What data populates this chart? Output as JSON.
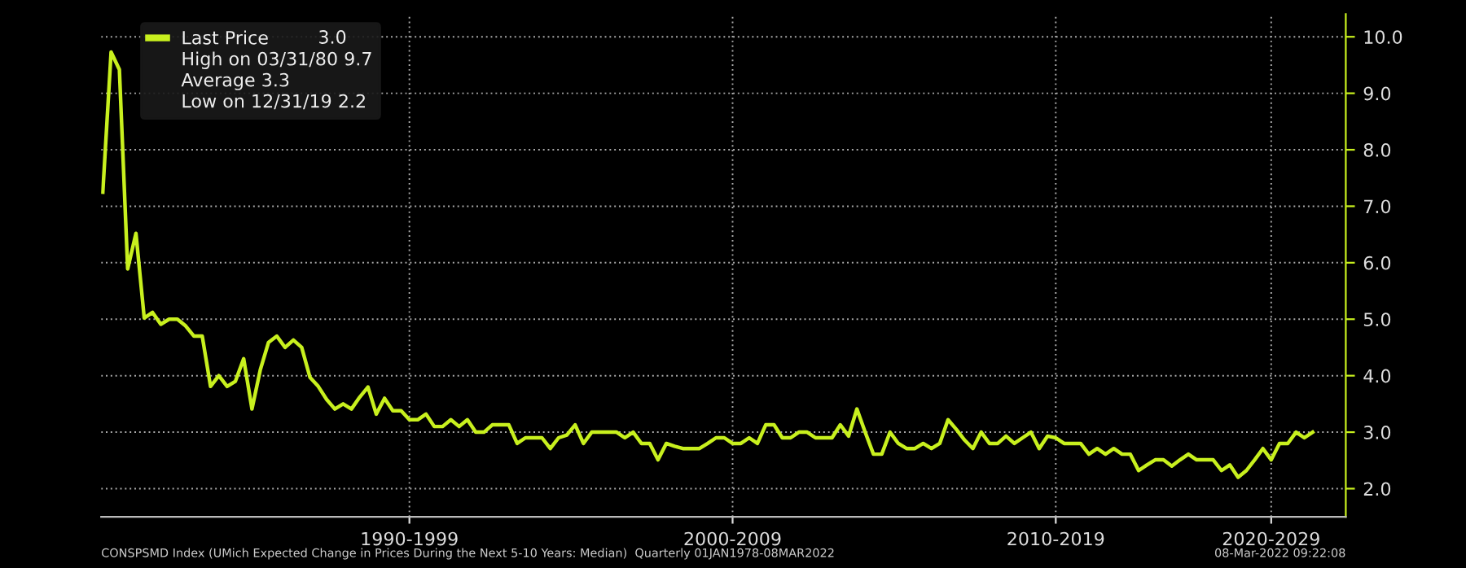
{
  "chart_data": {
    "type": "line",
    "categories": [
      null,
      null,
      null,
      null,
      null,
      null,
      null,
      null,
      null,
      null,
      null,
      null,
      null,
      null,
      null,
      null,
      null,
      null,
      null,
      null,
      null,
      null,
      null,
      null,
      null,
      null,
      null,
      null,
      null,
      null,
      null,
      null,
      null,
      null,
      null,
      null,
      null,
      "1990-1999",
      null,
      null,
      null,
      null,
      null,
      null,
      null,
      null,
      null,
      null,
      null,
      null,
      null,
      null,
      null,
      null,
      null,
      null,
      null,
      null,
      null,
      null,
      null,
      null,
      null,
      null,
      null,
      null,
      null,
      null,
      null,
      null,
      null,
      null,
      null,
      null,
      null,
      null,
      "2000-2009",
      null,
      null,
      null,
      null,
      null,
      null,
      null,
      null,
      null,
      null,
      null,
      null,
      null,
      null,
      null,
      null,
      null,
      null,
      null,
      null,
      null,
      null,
      null,
      null,
      null,
      null,
      null,
      null,
      null,
      null,
      null,
      null,
      null,
      null,
      null,
      null,
      null,
      null,
      "2010-2019",
      null,
      null,
      null,
      null,
      null,
      null,
      null,
      null,
      null,
      null,
      null,
      null,
      null,
      null,
      null,
      null,
      null,
      null,
      null,
      null,
      null,
      null,
      null,
      null,
      null,
      "2020-2029",
      null,
      null,
      null,
      null,
      null
    ],
    "series": [
      {
        "name": "Last Price",
        "color": "#c8f01e",
        "values": [
          7.25,
          9.73,
          9.42,
          5.89,
          6.52,
          5.02,
          5.12,
          4.91,
          5.0,
          5.0,
          4.88,
          4.7,
          4.7,
          3.81,
          4.0,
          3.81,
          3.9,
          4.3,
          3.41,
          4.1,
          4.59,
          4.7,
          4.5,
          4.63,
          4.5,
          3.97,
          3.81,
          3.58,
          3.41,
          3.5,
          3.41,
          3.62,
          3.8,
          3.32,
          3.6,
          3.38,
          3.38,
          3.22,
          3.22,
          3.32,
          3.1,
          3.1,
          3.22,
          3.1,
          3.22,
          3.0,
          3.0,
          3.13,
          3.13,
          3.13,
          2.8,
          2.9,
          2.9,
          2.9,
          2.71,
          2.9,
          2.95,
          3.13,
          2.8,
          3.0,
          3.0,
          3.0,
          3.0,
          2.9,
          3.0,
          2.8,
          2.8,
          2.51,
          2.8,
          2.75,
          2.71,
          2.71,
          2.71,
          2.8,
          2.9,
          2.9,
          2.8,
          2.8,
          2.9,
          2.8,
          3.13,
          3.13,
          2.9,
          2.9,
          3.0,
          3.0,
          2.9,
          2.9,
          2.9,
          3.13,
          2.93,
          3.41,
          3.0,
          2.61,
          2.61,
          3.0,
          2.8,
          2.71,
          2.71,
          2.8,
          2.71,
          2.8,
          3.22,
          3.05,
          2.86,
          2.71,
          3.0,
          2.8,
          2.8,
          2.93,
          2.8,
          2.9,
          3.0,
          2.71,
          2.93,
          2.9,
          2.8,
          2.8,
          2.8,
          2.61,
          2.71,
          2.61,
          2.71,
          2.61,
          2.61,
          2.32,
          2.42,
          2.51,
          2.51,
          2.4,
          2.51,
          2.61,
          2.51,
          2.51,
          2.51,
          2.32,
          2.42,
          2.2,
          2.32,
          2.51,
          2.71,
          2.51,
          2.8,
          2.8,
          3.0,
          2.9,
          3.0
        ]
      }
    ],
    "ylim": [
      1.5,
      10.4
    ],
    "yticks": [
      {
        "value": 2.0,
        "label": "2.0"
      },
      {
        "value": 3.0,
        "label": "3.0"
      },
      {
        "value": 4.0,
        "label": "4.0"
      },
      {
        "value": 5.0,
        "label": "5.0"
      },
      {
        "value": 6.0,
        "label": "6.0"
      },
      {
        "value": 7.0,
        "label": "7.0"
      },
      {
        "value": 8.0,
        "label": "8.0"
      },
      {
        "value": 9.0,
        "label": "9.0"
      },
      {
        "value": 10.0,
        "label": "10.0"
      }
    ],
    "grid": true,
    "legend": "top left",
    "annotations": [
      "3.0",
      "High on 03/31/80 9.7",
      "Average 3.3",
      "Low on 12/31/19 2.2",
      "CONSPSMD Index (UMich Expected Change in Prices During the Next 5-10 Years: Median)  Quarterly 01JAN1978-08MAR2022",
      "08-Mar-2022 09:22:08"
    ]
  }
}
